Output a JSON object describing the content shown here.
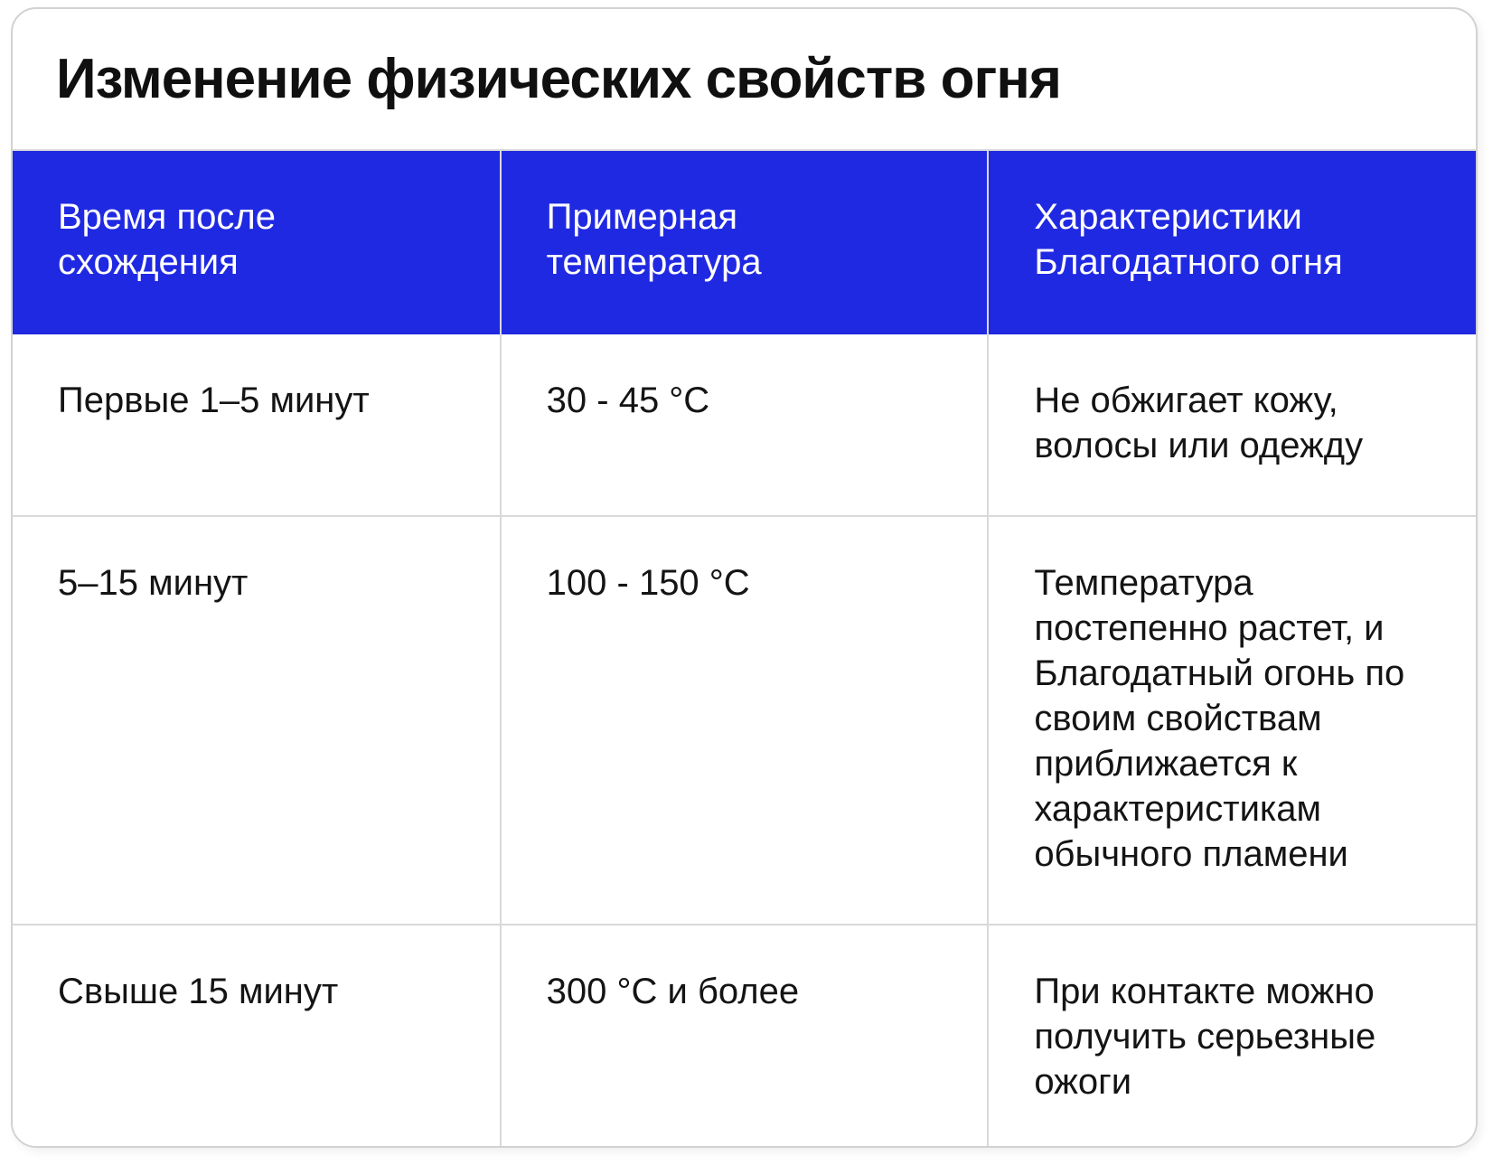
{
  "title": "Изменение физических свойств огня",
  "colors": {
    "header_bg": "#2029e2",
    "header_text": "#ffffff",
    "body_text": "#141414",
    "border": "#d9d9d9",
    "card_border": "#d2d2d2",
    "card_bg": "#ffffff"
  },
  "table": {
    "headers": [
      "Время после схождения",
      "Примерная температура",
      "Характеристики Благодатного огня"
    ],
    "rows": [
      {
        "time": "Первые 1–5 минут",
        "temperature": "30 - 45 °C",
        "characteristics": "Не обжигает кожу, волосы или одежду"
      },
      {
        "time": "5–15 минут",
        "temperature": "100 - 150 °C",
        "characteristics": "Температура постепенно растет, и Благодатный огонь по своим свойствам приближается к характеристикам обычного пламени"
      },
      {
        "time": "Свыше 15 минут",
        "temperature": "300 °C и более",
        "characteristics": "При контакте можно получить серьезные ожоги"
      }
    ]
  },
  "chart_data": {
    "type": "table",
    "title": "Изменение физических свойств огня",
    "columns": [
      "Время после схождения",
      "Примерная температура",
      "Характеристики Благодатного огня"
    ],
    "rows": [
      [
        "Первые 1–5 минут",
        "30 - 45 °C",
        "Не обжигает кожу, волосы или одежду"
      ],
      [
        "5–15 минут",
        "100 - 150 °C",
        "Температура постепенно растет, и Благодатный огонь по своим свойствам приближается к характеристикам обычного пламени"
      ],
      [
        "Свыше 15 минут",
        "300 °C и более",
        "При контакте можно получить серьезные ожоги"
      ]
    ],
    "layout": {
      "header_background": "#2029e2",
      "header_text_color": "#ffffff",
      "grid": true,
      "legend": "none"
    }
  }
}
